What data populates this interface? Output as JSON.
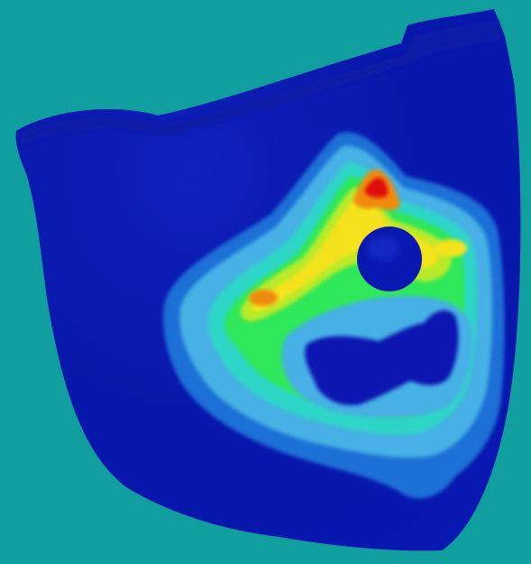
{
  "scene": {
    "subject": "fea-contour-plot-face-mask",
    "background_color": "#109e9e",
    "contour_colors": {
      "base_dark_blue": "#0818b0",
      "deep_blue": "#0a1aa6",
      "mid_blue": "#1f6fd6",
      "light_blue": "#46b0e4",
      "cyan": "#2fd6c8",
      "green": "#2ee85a",
      "yellow_green": "#b8ea2a",
      "yellow": "#f4e21a",
      "orange": "#f08a10",
      "red": "#e01010"
    }
  }
}
